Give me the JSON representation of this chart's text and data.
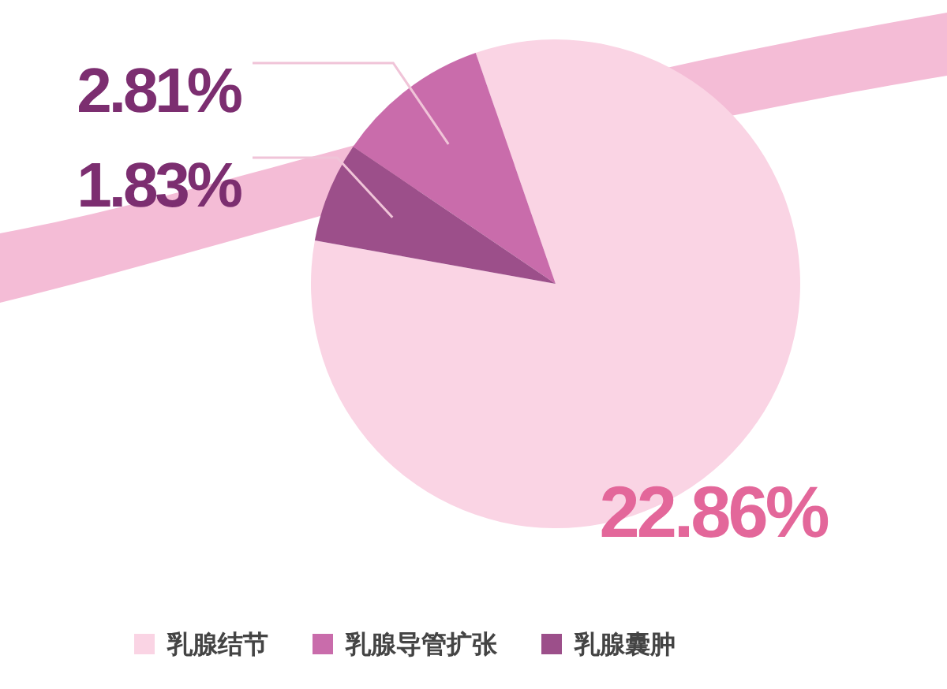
{
  "chart_data": {
    "type": "pie",
    "categories": [
      "乳腺结节",
      "乳腺导管扩张",
      "乳腺囊肿"
    ],
    "values": [
      22.86,
      2.81,
      1.83
    ],
    "colors": [
      "#fad4e4",
      "#c96cab",
      "#9c4f8a"
    ],
    "value_labels": [
      "22.86%",
      "2.81%",
      "1.83%"
    ],
    "legend": "bottom"
  }
}
